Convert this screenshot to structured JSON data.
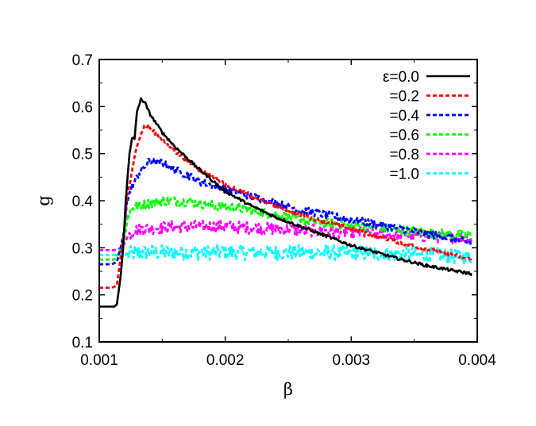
{
  "chart_data": {
    "type": "line",
    "xlabel": "β",
    "ylabel": "g",
    "xlim": [
      0.001,
      0.004
    ],
    "ylim": [
      0.1,
      0.7
    ],
    "xticks": [
      "0.001",
      "0.002",
      "0.003",
      "0.004"
    ],
    "yticks": [
      "0.1",
      "0.2",
      "0.3",
      "0.4",
      "0.5",
      "0.6",
      "0.7"
    ],
    "grid": false,
    "legend_position": "top-right",
    "series": [
      {
        "name": "ε=0.0",
        "color": "#000000",
        "dash": "solid",
        "noise": 0.003,
        "points": [
          [
            0.001,
            0.175
          ],
          [
            0.00112,
            0.175
          ],
          [
            0.00114,
            0.18
          ],
          [
            0.00117,
            0.24
          ],
          [
            0.00119,
            0.3
          ],
          [
            0.00121,
            0.4
          ],
          [
            0.00124,
            0.5
          ],
          [
            0.00126,
            0.535
          ],
          [
            0.00128,
            0.53
          ],
          [
            0.0013,
            0.59
          ],
          [
            0.00133,
            0.615
          ],
          [
            0.00136,
            0.61
          ],
          [
            0.0014,
            0.585
          ],
          [
            0.0015,
            0.545
          ],
          [
            0.0016,
            0.515
          ],
          [
            0.0017,
            0.49
          ],
          [
            0.0018,
            0.465
          ],
          [
            0.002,
            0.42
          ],
          [
            0.0022,
            0.39
          ],
          [
            0.0024,
            0.365
          ],
          [
            0.0026,
            0.345
          ],
          [
            0.0028,
            0.325
          ],
          [
            0.003,
            0.305
          ],
          [
            0.0032,
            0.29
          ],
          [
            0.0034,
            0.275
          ],
          [
            0.0036,
            0.262
          ],
          [
            0.0038,
            0.252
          ],
          [
            0.00395,
            0.245
          ]
        ]
      },
      {
        "name": "=0.2",
        "color": "#ff0000",
        "dash": "short",
        "noise": 0.004,
        "points": [
          [
            0.001,
            0.215
          ],
          [
            0.0011,
            0.215
          ],
          [
            0.00114,
            0.22
          ],
          [
            0.00117,
            0.28
          ],
          [
            0.0012,
            0.34
          ],
          [
            0.00122,
            0.41
          ],
          [
            0.00126,
            0.46
          ],
          [
            0.0013,
            0.52
          ],
          [
            0.00136,
            0.56
          ],
          [
            0.0014,
            0.555
          ],
          [
            0.0015,
            0.53
          ],
          [
            0.0016,
            0.505
          ],
          [
            0.0017,
            0.485
          ],
          [
            0.0018,
            0.465
          ],
          [
            0.002,
            0.435
          ],
          [
            0.0022,
            0.41
          ],
          [
            0.0024,
            0.39
          ],
          [
            0.0026,
            0.37
          ],
          [
            0.0028,
            0.355
          ],
          [
            0.003,
            0.34
          ],
          [
            0.0032,
            0.325
          ],
          [
            0.0034,
            0.31
          ],
          [
            0.0036,
            0.297
          ],
          [
            0.0038,
            0.285
          ],
          [
            0.00395,
            0.275
          ]
        ]
      },
      {
        "name": "=0.4",
        "color": "#0000ff",
        "dash": "short",
        "noise": 0.008,
        "points": [
          [
            0.001,
            0.265
          ],
          [
            0.0011,
            0.265
          ],
          [
            0.00114,
            0.27
          ],
          [
            0.00117,
            0.3
          ],
          [
            0.0012,
            0.34
          ],
          [
            0.00122,
            0.4
          ],
          [
            0.00126,
            0.43
          ],
          [
            0.00132,
            0.46
          ],
          [
            0.0014,
            0.485
          ],
          [
            0.0015,
            0.48
          ],
          [
            0.0016,
            0.465
          ],
          [
            0.0017,
            0.455
          ],
          [
            0.0018,
            0.44
          ],
          [
            0.002,
            0.425
          ],
          [
            0.0022,
            0.41
          ],
          [
            0.0024,
            0.395
          ],
          [
            0.0026,
            0.38
          ],
          [
            0.0028,
            0.37
          ],
          [
            0.003,
            0.36
          ],
          [
            0.0032,
            0.35
          ],
          [
            0.0034,
            0.34
          ],
          [
            0.0036,
            0.33
          ],
          [
            0.0038,
            0.32
          ],
          [
            0.00395,
            0.31
          ]
        ]
      },
      {
        "name": "=0.6",
        "color": "#00ff00",
        "dash": "short",
        "noise": 0.01,
        "points": [
          [
            0.001,
            0.275
          ],
          [
            0.00112,
            0.275
          ],
          [
            0.00116,
            0.29
          ],
          [
            0.0012,
            0.32
          ],
          [
            0.00123,
            0.37
          ],
          [
            0.00126,
            0.385
          ],
          [
            0.00132,
            0.39
          ],
          [
            0.0015,
            0.4
          ],
          [
            0.0017,
            0.398
          ],
          [
            0.0019,
            0.39
          ],
          [
            0.0021,
            0.385
          ],
          [
            0.0023,
            0.375
          ],
          [
            0.0025,
            0.365
          ],
          [
            0.0027,
            0.355
          ],
          [
            0.0029,
            0.35
          ],
          [
            0.0031,
            0.345
          ],
          [
            0.0033,
            0.34
          ],
          [
            0.0035,
            0.335
          ],
          [
            0.0037,
            0.33
          ],
          [
            0.00395,
            0.325
          ]
        ]
      },
      {
        "name": "=0.8",
        "color": "#ff00ff",
        "dash": "short",
        "noise": 0.013,
        "points": [
          [
            0.001,
            0.295
          ],
          [
            0.00112,
            0.295
          ],
          [
            0.00118,
            0.3
          ],
          [
            0.00122,
            0.32
          ],
          [
            0.00126,
            0.335
          ],
          [
            0.00135,
            0.34
          ],
          [
            0.0016,
            0.345
          ],
          [
            0.002,
            0.345
          ],
          [
            0.0024,
            0.34
          ],
          [
            0.0028,
            0.335
          ],
          [
            0.0032,
            0.33
          ],
          [
            0.0036,
            0.325
          ],
          [
            0.00395,
            0.32
          ]
        ]
      },
      {
        "name": "=1.0",
        "color": "#00ffff",
        "dash": "short",
        "noise": 0.016,
        "points": [
          [
            0.001,
            0.285
          ],
          [
            0.00112,
            0.285
          ],
          [
            0.0012,
            0.285
          ],
          [
            0.0013,
            0.29
          ],
          [
            0.0016,
            0.29
          ],
          [
            0.002,
            0.29
          ],
          [
            0.0024,
            0.29
          ],
          [
            0.0028,
            0.29
          ],
          [
            0.0032,
            0.288
          ],
          [
            0.0036,
            0.285
          ],
          [
            0.00395,
            0.28
          ]
        ]
      }
    ]
  }
}
